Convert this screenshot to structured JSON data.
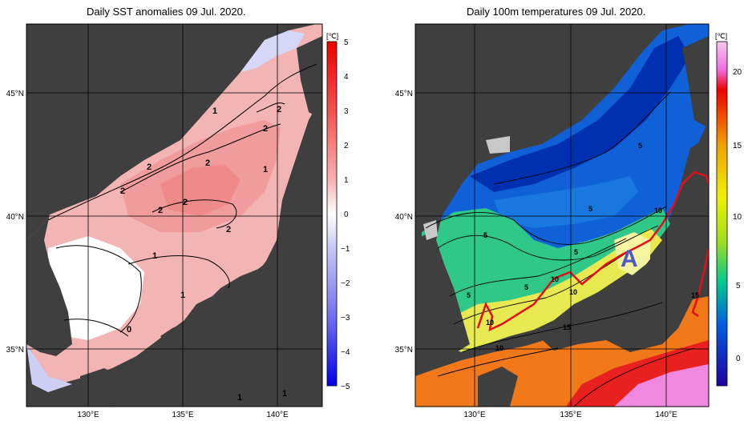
{
  "left": {
    "title": "Daily SST anomalies 09 Jul. 2020.",
    "unit": "[℃]",
    "colorbar_ticks": [
      "5",
      "4",
      "3",
      "2",
      "1",
      "0",
      "−1",
      "−2",
      "−3",
      "−4",
      "−5"
    ],
    "lat_labels": [
      "45°N",
      "40°N",
      "35°N"
    ],
    "lon_labels": [
      "130°E",
      "135°E",
      "140°E"
    ],
    "contour_labels": [
      "1",
      "2",
      "2",
      "2",
      "2",
      "2",
      "1",
      "2",
      "2",
      "2",
      "1",
      "1",
      "0",
      "1",
      "1"
    ]
  },
  "right": {
    "title": "Daily 100m temperatures 09 Jul. 2020.",
    "unit": "[℃]",
    "colorbar_ticks": [
      "20",
      "15",
      "10",
      "5",
      "0"
    ],
    "lat_labels": [
      "45°N",
      "40°N",
      "35°N"
    ],
    "lon_labels": [
      "130°E",
      "135°E",
      "140°E"
    ],
    "contour_labels": [
      "5",
      "5",
      "5",
      "5",
      "5",
      "10",
      "10",
      "5",
      "10",
      "10",
      "15",
      "15",
      "10"
    ],
    "eddy_label": "A"
  },
  "colors": {
    "land": "#3f3f3f",
    "no_data": "#c8c8c8",
    "anomaly_warm": "#f2a0a0",
    "current_line": "#e0101a",
    "eddy_label": "#4a58c8"
  }
}
